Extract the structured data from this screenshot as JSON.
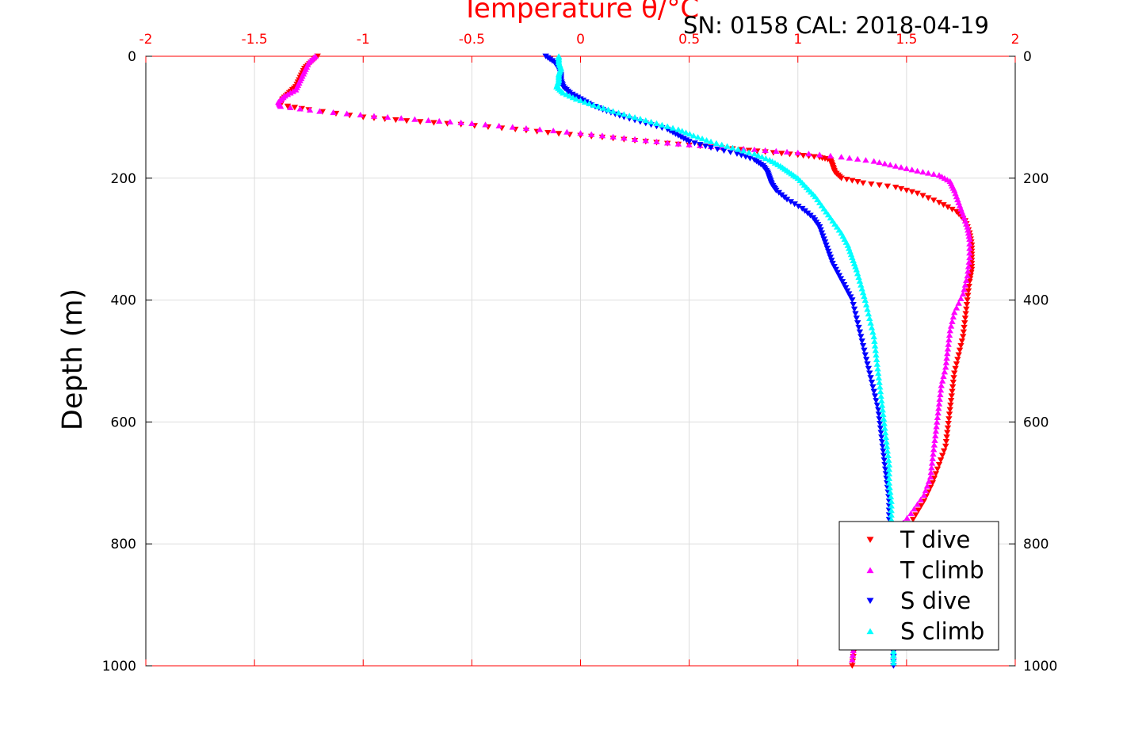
{
  "header": {
    "sn_cal": "SN: 0158  CAL: 2018-04-19"
  },
  "colors": {
    "temperature_axis": "#ff0000",
    "depth_axis": "#000000",
    "grid": "#dddddd",
    "T_dive": "#ff0000",
    "T_climb": "#ff00ff",
    "S_dive": "#0000ff",
    "S_climb": "#00ffff"
  },
  "chart_data": {
    "type": "scatter",
    "title": "Temperature θ/°C",
    "xlabel_top": "Temperature θ/°C",
    "ylabel": "Depth (m)",
    "xlim": [
      -2,
      2
    ],
    "ylim": [
      0,
      1000
    ],
    "y_reversed": true,
    "x_ticks": [
      "-2",
      "-1.5",
      "-1",
      "-0.5",
      "0",
      "0.5",
      "1",
      "1.5",
      "2"
    ],
    "y_ticks": [
      "0",
      "200",
      "400",
      "600",
      "800",
      "1000"
    ],
    "grid": true,
    "legend_position": "bottom-right",
    "series": [
      {
        "name": "T dive",
        "marker": "triangle-down",
        "color": "#ff0000",
        "points": [
          [
            -1.21,
            0
          ],
          [
            -1.24,
            10
          ],
          [
            -1.27,
            20
          ],
          [
            -1.29,
            35
          ],
          [
            -1.31,
            50
          ],
          [
            -1.34,
            60
          ],
          [
            -1.37,
            70
          ],
          [
            -1.38,
            80
          ],
          [
            -1.25,
            88
          ],
          [
            -1.0,
            100
          ],
          [
            -0.8,
            106
          ],
          [
            -0.55,
            112
          ],
          [
            -0.3,
            120
          ],
          [
            -0.1,
            127
          ],
          [
            0.1,
            133
          ],
          [
            0.3,
            140
          ],
          [
            0.5,
            146
          ],
          [
            0.7,
            152
          ],
          [
            0.85,
            157
          ],
          [
            1.0,
            162
          ],
          [
            1.1,
            166
          ],
          [
            1.15,
            170
          ],
          [
            1.16,
            180
          ],
          [
            1.17,
            190
          ],
          [
            1.2,
            200
          ],
          [
            1.3,
            208
          ],
          [
            1.45,
            215
          ],
          [
            1.55,
            225
          ],
          [
            1.65,
            240
          ],
          [
            1.73,
            255
          ],
          [
            1.77,
            270
          ],
          [
            1.79,
            290
          ],
          [
            1.8,
            310
          ],
          [
            1.8,
            330
          ],
          [
            1.8,
            350
          ],
          [
            1.79,
            370
          ],
          [
            1.78,
            400
          ],
          [
            1.77,
            430
          ],
          [
            1.76,
            460
          ],
          [
            1.74,
            490
          ],
          [
            1.72,
            520
          ],
          [
            1.71,
            550
          ],
          [
            1.7,
            580
          ],
          [
            1.69,
            610
          ],
          [
            1.68,
            640
          ],
          [
            1.65,
            670
          ],
          [
            1.62,
            700
          ],
          [
            1.58,
            730
          ],
          [
            1.53,
            760
          ],
          [
            1.45,
            790
          ],
          [
            1.38,
            820
          ],
          [
            1.32,
            850
          ],
          [
            1.29,
            880
          ],
          [
            1.28,
            910
          ],
          [
            1.27,
            940
          ],
          [
            1.26,
            970
          ],
          [
            1.25,
            1000
          ]
        ]
      },
      {
        "name": "T climb",
        "marker": "triangle-up",
        "color": "#ff00ff",
        "points": [
          [
            -1.22,
            0
          ],
          [
            -1.25,
            10
          ],
          [
            -1.27,
            25
          ],
          [
            -1.29,
            40
          ],
          [
            -1.31,
            55
          ],
          [
            -1.36,
            65
          ],
          [
            -1.39,
            75
          ],
          [
            -1.38,
            82
          ],
          [
            -1.2,
            90
          ],
          [
            -0.95,
            98
          ],
          [
            -0.7,
            105
          ],
          [
            -0.5,
            110
          ],
          [
            -0.25,
            118
          ],
          [
            0.0,
            126
          ],
          [
            0.2,
            134
          ],
          [
            0.4,
            142
          ],
          [
            0.6,
            148
          ],
          [
            0.8,
            153
          ],
          [
            1.0,
            158
          ],
          [
            1.2,
            165
          ],
          [
            1.35,
            172
          ],
          [
            1.45,
            180
          ],
          [
            1.55,
            188
          ],
          [
            1.65,
            195
          ],
          [
            1.7,
            205
          ],
          [
            1.72,
            220
          ],
          [
            1.74,
            240
          ],
          [
            1.76,
            260
          ],
          [
            1.78,
            280
          ],
          [
            1.79,
            300
          ],
          [
            1.79,
            330
          ],
          [
            1.78,
            360
          ],
          [
            1.76,
            390
          ],
          [
            1.72,
            420
          ],
          [
            1.7,
            450
          ],
          [
            1.69,
            480
          ],
          [
            1.68,
            510
          ],
          [
            1.66,
            540
          ],
          [
            1.65,
            570
          ],
          [
            1.64,
            600
          ],
          [
            1.63,
            630
          ],
          [
            1.62,
            660
          ],
          [
            1.61,
            690
          ],
          [
            1.58,
            720
          ],
          [
            1.52,
            750
          ],
          [
            1.45,
            780
          ],
          [
            1.37,
            810
          ],
          [
            1.31,
            840
          ],
          [
            1.28,
            870
          ],
          [
            1.27,
            900
          ],
          [
            1.26,
            930
          ],
          [
            1.26,
            960
          ],
          [
            1.25,
            990
          ]
        ]
      },
      {
        "name": "S dive",
        "marker": "triangle-down",
        "color": "#0000ff",
        "points": [
          [
            -0.16,
            0
          ],
          [
            -0.12,
            10
          ],
          [
            -0.1,
            20
          ],
          [
            -0.09,
            30
          ],
          [
            -0.09,
            40
          ],
          [
            -0.08,
            50
          ],
          [
            -0.05,
            60
          ],
          [
            0.0,
            70
          ],
          [
            0.05,
            80
          ],
          [
            0.12,
            90
          ],
          [
            0.2,
            100
          ],
          [
            0.3,
            110
          ],
          [
            0.4,
            120
          ],
          [
            0.45,
            130
          ],
          [
            0.5,
            140
          ],
          [
            0.6,
            150
          ],
          [
            0.72,
            160
          ],
          [
            0.8,
            170
          ],
          [
            0.84,
            180
          ],
          [
            0.86,
            190
          ],
          [
            0.87,
            200
          ],
          [
            0.88,
            210
          ],
          [
            0.9,
            220
          ],
          [
            0.95,
            235
          ],
          [
            1.02,
            250
          ],
          [
            1.07,
            265
          ],
          [
            1.1,
            280
          ],
          [
            1.12,
            300
          ],
          [
            1.14,
            320
          ],
          [
            1.16,
            340
          ],
          [
            1.19,
            360
          ],
          [
            1.22,
            380
          ],
          [
            1.25,
            400
          ],
          [
            1.27,
            430
          ],
          [
            1.29,
            460
          ],
          [
            1.31,
            490
          ],
          [
            1.33,
            520
          ],
          [
            1.35,
            550
          ],
          [
            1.37,
            580
          ],
          [
            1.38,
            610
          ],
          [
            1.39,
            640
          ],
          [
            1.4,
            670
          ],
          [
            1.41,
            700
          ],
          [
            1.42,
            730
          ],
          [
            1.42,
            760
          ],
          [
            1.43,
            790
          ],
          [
            1.43,
            820
          ],
          [
            1.43,
            850
          ],
          [
            1.43,
            880
          ],
          [
            1.43,
            910
          ],
          [
            1.44,
            940
          ],
          [
            1.44,
            970
          ],
          [
            1.44,
            1000
          ]
        ]
      },
      {
        "name": "S climb",
        "marker": "triangle-up",
        "color": "#00ffff",
        "points": [
          [
            -0.1,
            0
          ],
          [
            -0.1,
            10
          ],
          [
            -0.09,
            20
          ],
          [
            -0.1,
            30
          ],
          [
            -0.1,
            40
          ],
          [
            -0.11,
            50
          ],
          [
            -0.08,
            60
          ],
          [
            -0.02,
            70
          ],
          [
            0.06,
            80
          ],
          [
            0.15,
            90
          ],
          [
            0.25,
            100
          ],
          [
            0.35,
            110
          ],
          [
            0.45,
            120
          ],
          [
            0.52,
            130
          ],
          [
            0.6,
            140
          ],
          [
            0.7,
            150
          ],
          [
            0.8,
            160
          ],
          [
            0.87,
            170
          ],
          [
            0.92,
            180
          ],
          [
            0.96,
            190
          ],
          [
            1.0,
            200
          ],
          [
            1.04,
            215
          ],
          [
            1.08,
            230
          ],
          [
            1.12,
            250
          ],
          [
            1.16,
            270
          ],
          [
            1.2,
            290
          ],
          [
            1.23,
            310
          ],
          [
            1.25,
            330
          ],
          [
            1.27,
            350
          ],
          [
            1.29,
            375
          ],
          [
            1.31,
            400
          ],
          [
            1.33,
            430
          ],
          [
            1.35,
            460
          ],
          [
            1.36,
            490
          ],
          [
            1.37,
            520
          ],
          [
            1.38,
            550
          ],
          [
            1.39,
            580
          ],
          [
            1.4,
            610
          ],
          [
            1.41,
            640
          ],
          [
            1.42,
            670
          ],
          [
            1.42,
            700
          ],
          [
            1.43,
            730
          ],
          [
            1.43,
            760
          ],
          [
            1.43,
            790
          ],
          [
            1.43,
            820
          ],
          [
            1.43,
            850
          ],
          [
            1.43,
            880
          ],
          [
            1.44,
            910
          ],
          [
            1.44,
            940
          ],
          [
            1.44,
            970
          ],
          [
            1.44,
            995
          ]
        ]
      }
    ]
  }
}
